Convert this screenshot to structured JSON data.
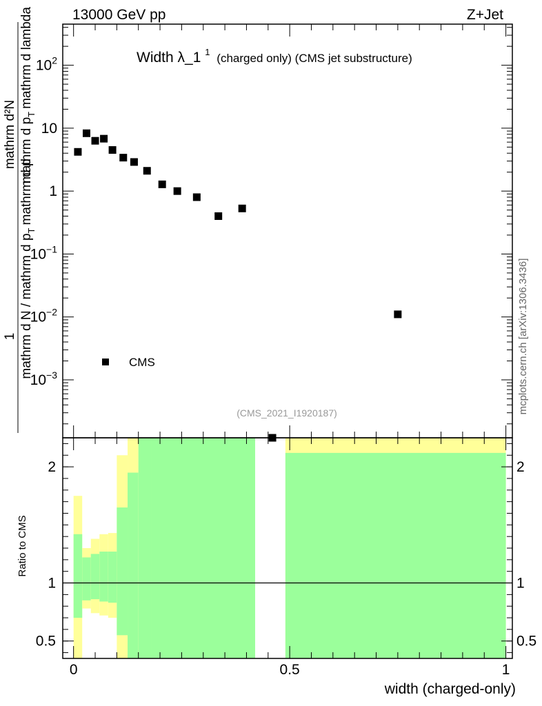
{
  "header": {
    "left": "13000 GeV pp",
    "right": "Z+Jet"
  },
  "side_label": "mcplots.cern.ch [arXiv:1306.3436]",
  "chart_data": [
    {
      "type": "scatter",
      "title": "Width λ_1",
      "title_sup": "1",
      "title_suffix": "(charged only) (CMS jet substructure)",
      "analysis_tag": "(CMS_2021_I1920187)",
      "ylabel": {
        "numerator": "1",
        "denominator": "mathrm d N / mathrm d p",
        "denominator_sub": "T",
        "denominator_rest": "mathrm d p",
        "rhs_numerator": "mathrm d²N",
        "rhs_denominator": "mathrm d p",
        "rhs_denominator_sub": "T",
        "rhs_denominator_rest": "mathrm d lambda"
      },
      "yscale": "log",
      "ylim": [
        0.00012,
        450
      ],
      "xlim": [
        -0.025,
        1.015
      ],
      "y_ticks": [
        {
          "value": 0.001,
          "base": "10",
          "exp": "−3"
        },
        {
          "value": 0.01,
          "base": "10",
          "exp": "−2"
        },
        {
          "value": 0.1,
          "base": "10",
          "exp": "−1"
        },
        {
          "value": 1,
          "base": "1",
          "exp": ""
        },
        {
          "value": 10,
          "base": "10",
          "exp": ""
        },
        {
          "value": 100,
          "base": "10",
          "exp": "2"
        }
      ],
      "legend": [
        {
          "name": "CMS",
          "marker": "square",
          "color": "#000000"
        }
      ],
      "series": [
        {
          "name": "CMS",
          "points": [
            {
              "x": 0.01,
              "y": 4.2
            },
            {
              "x": 0.03,
              "y": 8.3
            },
            {
              "x": 0.05,
              "y": 6.3
            },
            {
              "x": 0.07,
              "y": 6.8
            },
            {
              "x": 0.09,
              "y": 4.5
            },
            {
              "x": 0.115,
              "y": 3.4
            },
            {
              "x": 0.14,
              "y": 2.9
            },
            {
              "x": 0.17,
              "y": 2.1
            },
            {
              "x": 0.205,
              "y": 1.28
            },
            {
              "x": 0.24,
              "y": 1.0
            },
            {
              "x": 0.285,
              "y": 0.8
            },
            {
              "x": 0.335,
              "y": 0.4
            },
            {
              "x": 0.39,
              "y": 0.53
            },
            {
              "x": 0.46,
              "y": 0.00012
            },
            {
              "x": 0.75,
              "y": 0.011
            }
          ]
        }
      ]
    },
    {
      "type": "area",
      "ylabel": "Ratio to CMS",
      "xlabel": "width (charged-only)",
      "xlim": [
        -0.025,
        1.015
      ],
      "ylim": [
        0.35,
        2.25
      ],
      "x_ticks": [
        {
          "value": 0,
          "label": "0"
        },
        {
          "value": 0.5,
          "label": "0.5"
        },
        {
          "value": 1,
          "label": "1"
        }
      ],
      "y_ticks": [
        {
          "value": 0.5,
          "label": "0.5"
        },
        {
          "value": 1,
          "label": "1"
        },
        {
          "value": 2,
          "label": "2"
        }
      ],
      "reference_line": 1,
      "colors": {
        "inner": "#9bff9b",
        "outer": "#ffff99"
      },
      "bands": [
        {
          "x0": 0.0,
          "x1": 0.02,
          "green": [
            0.7,
            1.42
          ],
          "yellow": [
            0.35,
            1.75
          ]
        },
        {
          "x0": 0.02,
          "x1": 0.04,
          "green": [
            0.85,
            1.22
          ],
          "yellow": [
            0.78,
            1.3
          ]
        },
        {
          "x0": 0.04,
          "x1": 0.06,
          "green": [
            0.86,
            1.25
          ],
          "yellow": [
            0.74,
            1.38
          ]
        },
        {
          "x0": 0.06,
          "x1": 0.08,
          "green": [
            0.84,
            1.27
          ],
          "yellow": [
            0.72,
            1.42
          ]
        },
        {
          "x0": 0.08,
          "x1": 0.1,
          "green": [
            0.83,
            1.27
          ],
          "yellow": [
            0.7,
            1.43
          ]
        },
        {
          "x0": 0.1,
          "x1": 0.125,
          "green": [
            0.55,
            1.65
          ],
          "yellow": [
            0.35,
            2.1
          ]
        },
        {
          "x0": 0.125,
          "x1": 0.15,
          "green": [
            0.35,
            1.95
          ],
          "yellow": [
            0.35,
            2.25
          ]
        },
        {
          "x0": 0.15,
          "x1": 0.18,
          "green": [
            0.35,
            2.25
          ],
          "yellow": [
            0.35,
            2.25
          ]
        },
        {
          "x0": 0.18,
          "x1": 0.42,
          "green": [
            0.35,
            2.25
          ],
          "yellow": [
            0.35,
            2.25
          ]
        },
        {
          "x0": 0.49,
          "x1": 1.0,
          "green": [
            0.35,
            2.12
          ],
          "yellow": [
            0.35,
            2.25
          ]
        }
      ]
    }
  ]
}
